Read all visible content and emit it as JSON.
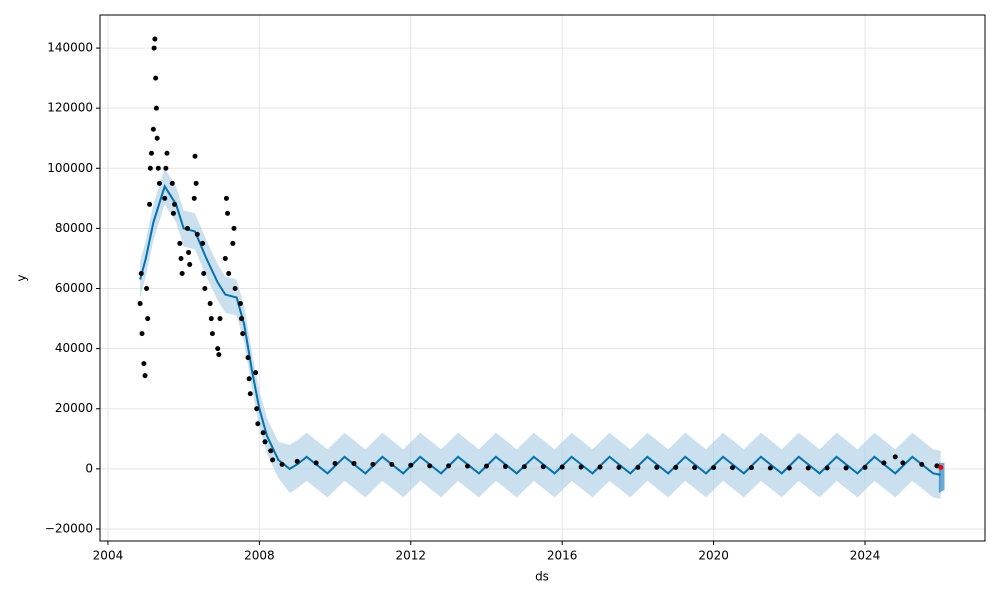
{
  "chart_data": {
    "type": "forecast",
    "x_label": "ds",
    "y_label": "y",
    "grid": true,
    "xlim": [
      2003.79,
      2027.17
    ],
    "ylim": [
      -24000,
      151000
    ],
    "xticks": [
      2004,
      2008,
      2012,
      2016,
      2020,
      2024
    ],
    "yticks": [
      {
        "value": -20000,
        "label": "−20000"
      },
      0,
      20000,
      40000,
      60000,
      80000,
      100000,
      120000,
      140000
    ],
    "series": [
      {
        "type": "band",
        "color": "#a6cbe3",
        "x": [
          2004.85,
          2005.0,
          2005.2,
          2005.5,
          2005.8,
          2006.0,
          2006.3,
          2006.6,
          2006.9,
          2007.1,
          2007.4,
          2007.6,
          2007.8,
          2008.0,
          2008.2,
          2008.5,
          2008.8,
          2009.0,
          2009.25,
          2009.55,
          2009.8,
          2010.25,
          2010.55,
          2010.8,
          2011.25,
          2011.55,
          2011.8,
          2012.25,
          2012.55,
          2012.8,
          2013.25,
          2013.55,
          2013.8,
          2014.25,
          2014.55,
          2014.8,
          2015.25,
          2015.55,
          2015.8,
          2016.25,
          2016.55,
          2016.8,
          2017.25,
          2017.55,
          2017.8,
          2018.25,
          2018.55,
          2018.8,
          2019.25,
          2019.55,
          2019.8,
          2020.25,
          2020.55,
          2020.8,
          2021.25,
          2021.55,
          2021.8,
          2022.25,
          2022.55,
          2022.8,
          2023.25,
          2023.55,
          2023.8,
          2024.25,
          2024.55,
          2024.8,
          2025.25,
          2025.55,
          2025.8,
          2026.0
        ],
        "upper": [
          69000,
          76000,
          88000,
          100000,
          94000,
          86000,
          85000,
          76000,
          68000,
          64000,
          63000,
          54000,
          39000,
          26000,
          17000,
          9000,
          8000,
          9500,
          12000,
          9000,
          6500,
          12000,
          9000,
          6500,
          12000,
          9000,
          6500,
          12000,
          9000,
          6500,
          12000,
          9000,
          6500,
          12000,
          9000,
          6500,
          12000,
          9000,
          6500,
          12000,
          9000,
          6500,
          12000,
          9000,
          6500,
          12000,
          9000,
          6500,
          12000,
          9000,
          6500,
          12000,
          9000,
          6500,
          12000,
          9000,
          6500,
          12000,
          9000,
          6500,
          12000,
          9000,
          6500,
          12000,
          9000,
          6500,
          12000,
          9000,
          6500,
          6000
        ],
        "lower": [
          57000,
          64000,
          76000,
          88000,
          82000,
          74000,
          73000,
          64000,
          56000,
          52000,
          51000,
          42000,
          27000,
          14000,
          5000,
          -3000,
          -8000,
          -6500,
          -4000,
          -7000,
          -9500,
          -4000,
          -7000,
          -9500,
          -4000,
          -7000,
          -9500,
          -4000,
          -7000,
          -9500,
          -4000,
          -7000,
          -9500,
          -4000,
          -7000,
          -9500,
          -4000,
          -7000,
          -9500,
          -4000,
          -7000,
          -9500,
          -4000,
          -7000,
          -9500,
          -4000,
          -7000,
          -9500,
          -4000,
          -7000,
          -9500,
          -4000,
          -7000,
          -9500,
          -4000,
          -7000,
          -9500,
          -4000,
          -7000,
          -9500,
          -4000,
          -7000,
          -9500,
          -4000,
          -7000,
          -9500,
          -4000,
          -7000,
          -9500,
          -10000
        ]
      },
      {
        "type": "band",
        "color": "#0072b2",
        "x": [
          2025.95,
          2026.1
        ],
        "upper": [
          2000,
          2000
        ],
        "lower": [
          -8000,
          -7000
        ]
      },
      {
        "type": "line",
        "color": "#0072b2",
        "x": [
          2004.85,
          2005.0,
          2005.2,
          2005.5,
          2005.8,
          2006.0,
          2006.3,
          2006.6,
          2006.9,
          2007.1,
          2007.4,
          2007.6,
          2007.8,
          2008.0,
          2008.2,
          2008.5,
          2008.8,
          2009.0,
          2009.25,
          2009.55,
          2009.8,
          2010.25,
          2010.55,
          2010.8,
          2011.25,
          2011.55,
          2011.8,
          2012.25,
          2012.55,
          2012.8,
          2013.25,
          2013.55,
          2013.8,
          2014.25,
          2014.55,
          2014.8,
          2015.25,
          2015.55,
          2015.8,
          2016.25,
          2016.55,
          2016.8,
          2017.25,
          2017.55,
          2017.8,
          2018.25,
          2018.55,
          2018.8,
          2019.25,
          2019.55,
          2019.8,
          2020.25,
          2020.55,
          2020.8,
          2021.25,
          2021.55,
          2021.8,
          2022.25,
          2022.55,
          2022.8,
          2023.25,
          2023.55,
          2023.8,
          2024.25,
          2024.55,
          2024.8,
          2025.25,
          2025.55,
          2025.8,
          2026.0
        ],
        "values": [
          63000,
          70000,
          82000,
          94000,
          88000,
          80000,
          79000,
          70000,
          62000,
          58000,
          57000,
          48000,
          33000,
          20000,
          11000,
          3000,
          0,
          1500,
          4000,
          1000,
          -1500,
          4000,
          1000,
          -1500,
          4000,
          1000,
          -1500,
          4000,
          1000,
          -1500,
          4000,
          1000,
          -1500,
          4000,
          1000,
          -1500,
          4000,
          1000,
          -1500,
          4000,
          1000,
          -1500,
          4000,
          1000,
          -1500,
          4000,
          1000,
          -1500,
          4000,
          1000,
          -1500,
          4000,
          1000,
          -1500,
          4000,
          1000,
          -1500,
          4000,
          1000,
          -1500,
          4000,
          1000,
          -1500,
          4000,
          1000,
          -1500,
          4000,
          1000,
          -1500,
          -2000
        ]
      },
      {
        "type": "scatter",
        "color": "#000000",
        "x": [
          2004.85,
          2004.88,
          2004.9,
          2004.95,
          2004.98,
          2005.02,
          2005.05,
          2005.1,
          2005.12,
          2005.15,
          2005.2,
          2005.22,
          2005.24,
          2005.26,
          2005.28,
          2005.3,
          2005.33,
          2005.36,
          2005.5,
          2005.53,
          2005.56,
          2005.7,
          2005.73,
          2005.76,
          2005.9,
          2005.93,
          2005.96,
          2006.1,
          2006.13,
          2006.16,
          2006.28,
          2006.3,
          2006.33,
          2006.36,
          2006.5,
          2006.53,
          2006.56,
          2006.7,
          2006.73,
          2006.76,
          2006.9,
          2006.93,
          2006.96,
          2007.1,
          2007.13,
          2007.16,
          2007.19,
          2007.3,
          2007.33,
          2007.36,
          2007.5,
          2007.53,
          2007.56,
          2007.7,
          2007.73,
          2007.76,
          2007.9,
          2007.93,
          2007.96,
          2008.1,
          2008.15,
          2008.3,
          2008.35,
          2008.6,
          2009.0,
          2009.5,
          2010.0,
          2010.5,
          2011.0,
          2011.5,
          2012.0,
          2012.5,
          2013.0,
          2013.5,
          2014.0,
          2014.5,
          2015.0,
          2015.5,
          2016.0,
          2016.5,
          2017.0,
          2017.5,
          2018.0,
          2018.5,
          2019.0,
          2019.5,
          2020.0,
          2020.5,
          2021.0,
          2021.5,
          2022.0,
          2022.5,
          2023.0,
          2023.5,
          2024.0,
          2024.5,
          2024.8,
          2025.0,
          2025.5,
          2025.9
        ],
        "values": [
          55000,
          65000,
          45000,
          35000,
          31000,
          60000,
          50000,
          88000,
          100000,
          105000,
          113000,
          140000,
          143000,
          130000,
          120000,
          110000,
          100000,
          95000,
          90000,
          100000,
          105000,
          95000,
          85000,
          88000,
          75000,
          70000,
          65000,
          80000,
          72000,
          68000,
          90000,
          104000,
          95000,
          78000,
          75000,
          65000,
          60000,
          55000,
          50000,
          45000,
          40000,
          38000,
          50000,
          70000,
          90000,
          85000,
          65000,
          75000,
          80000,
          60000,
          55000,
          50000,
          45000,
          37000,
          30000,
          25000,
          32000,
          20000,
          15000,
          12000,
          9000,
          6000,
          3000,
          1500,
          2500,
          2000,
          1800,
          1800,
          1500,
          1500,
          1200,
          1000,
          1000,
          900,
          900,
          800,
          700,
          700,
          600,
          600,
          600,
          500,
          500,
          500,
          500,
          400,
          400,
          400,
          400,
          300,
          300,
          300,
          300,
          300,
          500,
          2000,
          4000,
          2000,
          1500,
          1000
        ]
      },
      {
        "type": "scatter",
        "color": "#ff0000",
        "x": [
          2026.0
        ],
        "values": [
          500
        ]
      }
    ]
  }
}
